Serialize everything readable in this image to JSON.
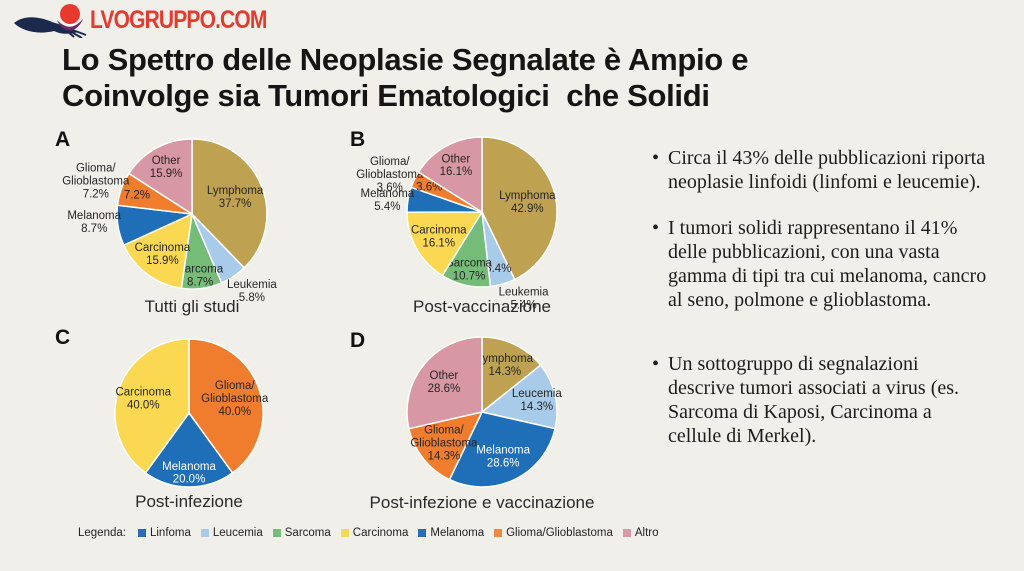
{
  "brand": {
    "name": "LVOGRUPPO.COM",
    "color": "#e63a2e"
  },
  "title": {
    "line1": "Lo Spettro delle Neoplasie Segnalate è Ampio e",
    "line2": "Coinvolge sia Tumori Ematologici  che Solidi"
  },
  "bullets": [
    "Circa il 43% delle pubblicazioni riporta neoplasie linfoidi (linfomi e leucemie).",
    "I tumori solidi rappresentano il 41% delle pubblicazioni, con una vasta gamma di tipi tra cui melanoma, cancro al seno, polmone e glioblastoma.",
    "Un sottogruppo di segnalazioni descrive tumori associati a virus (es. Sarcoma di Kaposi, Carcinoma a cellule di Merkel)."
  ],
  "legend": {
    "label": "Legenda:",
    "items": [
      {
        "label": "Linfoma",
        "color": "#2a6db5"
      },
      {
        "label": "Leucemia",
        "color": "#a8cbe9"
      },
      {
        "label": "Sarcoma",
        "color": "#74bc78"
      },
      {
        "label": "Carcinoma",
        "color": "#f3d860"
      },
      {
        "label": "Melanoma",
        "color": "#2a6db5"
      },
      {
        "label": "Glioma/Glioblastoma",
        "color": "#ec8b42"
      },
      {
        "label": "Altro",
        "color": "#d89ba6"
      }
    ]
  },
  "chart_data": [
    {
      "id": "A",
      "type": "pie",
      "title": "Tutti gli studi",
      "legend_position": "bottom-shared",
      "slices": [
        {
          "name": "Lymphoma",
          "lines": [
            "Lymphoma"
          ],
          "value": 37.7,
          "pct": "37.7%",
          "color": "#bfa251",
          "mode": "inside",
          "lr": 0.62
        },
        {
          "name": "Leukemia",
          "lines": [
            "Leukemia"
          ],
          "value": 5.8,
          "pct": "5.8%",
          "color": "#a8cbe9",
          "mode": "outside",
          "ox": 5,
          "oy": -6
        },
        {
          "name": "Sarcoma",
          "lines": [
            "Sarcoma"
          ],
          "value": 8.7,
          "pct": "8.7%",
          "color": "#74bc78",
          "mode": "inside",
          "lr": 0.82
        },
        {
          "name": "Carcinoma",
          "lines": [
            "Carcinoma"
          ],
          "value": 15.9,
          "pct": "15.9%",
          "color": "#fbd851",
          "mode": "inside",
          "lr": 0.66
        },
        {
          "name": "Melanoma",
          "lines": [
            "Melanoma"
          ],
          "value": 8.7,
          "pct": "8.7%",
          "color": "#1f6fb8",
          "mode": "outside",
          "oy": -8
        },
        {
          "name": "Glioma/Glioblastoma",
          "lines": [
            "Glioma/",
            "Glioblastoma"
          ],
          "value": 7.2,
          "pct": "7.2%",
          "color": "#f07d2e",
          "mode": "both",
          "lr": 0.78,
          "ox": -3
        },
        {
          "name": "Other",
          "lines": [
            "Other"
          ],
          "value": 15.9,
          "pct": "15.9%",
          "color": "#d897a4",
          "mode": "inside",
          "lr": 0.72
        }
      ]
    },
    {
      "id": "B",
      "type": "pie",
      "title": "Post-vaccinazione",
      "slices": [
        {
          "name": "Lymphoma",
          "lines": [
            "Lymphoma"
          ],
          "value": 42.9,
          "pct": "42.9%",
          "color": "#bfa251",
          "mode": "inside",
          "lr": 0.62
        },
        {
          "name": "Leukemia",
          "lines": [
            "Leukemia"
          ],
          "value": 5.4,
          "pct": "5.4%",
          "color": "#a8cbe9",
          "mode": "both",
          "lr": 0.78,
          "ox": 14,
          "oy": -9
        },
        {
          "name": "Sarcoma",
          "lines": [
            "Sarcoma"
          ],
          "value": 10.7,
          "pct": "10.7%",
          "color": "#74bc78",
          "mode": "inside",
          "lr": 0.78
        },
        {
          "name": "Carcinoma",
          "lines": [
            "Carcinoma"
          ],
          "value": 16.1,
          "pct": "16.1%",
          "color": "#fbd851",
          "mode": "inside",
          "lr": 0.66
        },
        {
          "name": "Melanoma",
          "lines": [
            "Melanoma"
          ],
          "value": 5.4,
          "pct": "5.4%",
          "color": "#1f6fb8",
          "mode": "outside",
          "ox": 3,
          "oy": 4
        },
        {
          "name": "Glioma/Glioblastoma",
          "lines": [
            "Glioma/",
            "Glioblastoma"
          ],
          "value": 3.6,
          "pct": "3.6%",
          "color": "#f07d2e",
          "mode": "both",
          "lr": 0.78,
          "ox": -3,
          "oy": 5
        },
        {
          "name": "Other",
          "lines": [
            "Other"
          ],
          "value": 16.1,
          "pct": "16.1%",
          "color": "#d897a4",
          "mode": "inside",
          "lr": 0.72
        }
      ]
    },
    {
      "id": "C",
      "type": "pie",
      "title": "Post-infezione",
      "slices": [
        {
          "name": "Glioma/Glioblastoma",
          "lines": [
            "Glioma/",
            "Glioblastoma"
          ],
          "value": 40.0,
          "pct": "40.0%",
          "color": "#f07d2e",
          "mode": "inside",
          "lr": 0.65
        },
        {
          "name": "Melanoma",
          "lines": [
            "Melanoma"
          ],
          "value": 20.0,
          "pct": "20.0%",
          "color": "#1f6fb8",
          "mode": "inside",
          "lr": 0.8,
          "text_color": "#ffffff"
        },
        {
          "name": "Carcinoma",
          "lines": [
            "Carcinoma"
          ],
          "value": 40.0,
          "pct": "40.0%",
          "color": "#fbd851",
          "mode": "inside",
          "lr": 0.65
        }
      ]
    },
    {
      "id": "D",
      "type": "pie",
      "title": "Post-infezione e vaccinazione",
      "slices": [
        {
          "name": "Lymphoma",
          "lines": [
            "Lymphoma"
          ],
          "value": 14.3,
          "pct": "14.3%",
          "color": "#bfa251",
          "mode": "inside",
          "lr": 0.7
        },
        {
          "name": "Leucemia",
          "lines": [
            "Leucemia"
          ],
          "value": 14.3,
          "pct": "14.3%",
          "color": "#a8cbe9",
          "mode": "inside",
          "lr": 0.75
        },
        {
          "name": "Melanoma",
          "lines": [
            "Melanoma"
          ],
          "value": 28.6,
          "pct": "28.6%",
          "color": "#1f6fb8",
          "mode": "inside",
          "lr": 0.65,
          "text_color": "#ffffff"
        },
        {
          "name": "Glioma/Glioblastoma",
          "lines": [
            "Glioma/",
            "Glioblastoma"
          ],
          "value": 14.3,
          "pct": "14.3%",
          "color": "#f07d2e",
          "mode": "inside",
          "lr": 0.65
        },
        {
          "name": "Other",
          "lines": [
            "Other"
          ],
          "value": 28.6,
          "pct": "28.6%",
          "color": "#d897a4",
          "mode": "inside",
          "lr": 0.65
        }
      ]
    }
  ]
}
